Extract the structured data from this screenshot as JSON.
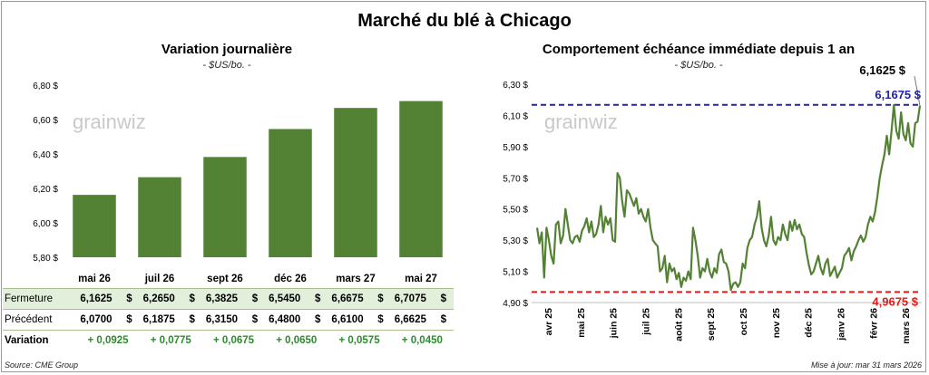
{
  "title": "Marché du blé à Chicago",
  "left_panel": {
    "title": "Variation journalière",
    "subtitle": "- $US/bo. -"
  },
  "right_panel": {
    "title": "Comportement échéance immédiate depuis 1 an",
    "subtitle": "- $US/bo. -"
  },
  "watermark": {
    "text": "grainwiz"
  },
  "table": {
    "rows": [
      {
        "label": "Fermeture",
        "values": [
          "6,1625",
          "6,2650",
          "6,3825",
          "6,5450",
          "6,6675",
          "6,7075"
        ],
        "unit": "$"
      },
      {
        "label": "Précédent",
        "values": [
          "6,0700",
          "6,1875",
          "6,3150",
          "6,4800",
          "6,6100",
          "6,6625"
        ],
        "unit": "$"
      },
      {
        "label": "Variation",
        "values": [
          "+ 0,0925",
          "+ 0,0775",
          "+ 0,0675",
          "+ 0,0650",
          "+ 0,0575",
          "+ 0,0450"
        ]
      }
    ]
  },
  "footer": {
    "source": "Source: CME Group",
    "updated": "Mise à jour: mar 31 mars 2026"
  },
  "chart_data": [
    {
      "type": "bar",
      "title": "Variation journalière",
      "subtitle": "- $US/bo. -",
      "categories": [
        "mai 26",
        "juil 26",
        "sept 26",
        "déc 26",
        "mars 27",
        "mai 27"
      ],
      "values": [
        6.1625,
        6.265,
        6.3825,
        6.545,
        6.6675,
        6.7075
      ],
      "ylim": [
        5.8,
        6.8
      ],
      "yticks": [
        "5,80 $",
        "6,00 $",
        "6,20 $",
        "6,40 $",
        "6,60 $",
        "6,80 $"
      ],
      "color": "#548235"
    },
    {
      "type": "line",
      "title": "Comportement échéance immédiate depuis 1 an",
      "subtitle": "- $US/bo. -",
      "ylim": [
        4.9,
        6.3
      ],
      "yticks": [
        "4,90 $",
        "5,10 $",
        "5,30 $",
        "5,50 $",
        "5,70 $",
        "5,90 $",
        "6,10 $",
        "6,30 $"
      ],
      "xticks": [
        "avr 25",
        "mai 25",
        "juin 25",
        "juil 25",
        "août 25",
        "sept 25",
        "oct 25",
        "nov 25",
        "déc 25",
        "janv 26",
        "févr 26",
        "mars 26"
      ],
      "series": [
        {
          "color": "#548235",
          "values": [
            5.38,
            5.28,
            5.35,
            5.06,
            5.38,
            5.3,
            5.2,
            5.15,
            5.4,
            5.42,
            5.28,
            5.33,
            5.5,
            5.4,
            5.3,
            5.28,
            5.32,
            5.33,
            5.29,
            5.36,
            5.39,
            5.44,
            5.35,
            5.42,
            5.32,
            5.34,
            5.4,
            5.52,
            5.35,
            5.45,
            5.4,
            5.44,
            5.3,
            5.29,
            5.73,
            5.7,
            5.55,
            5.45,
            5.62,
            5.6,
            5.56,
            5.52,
            5.57,
            5.47,
            5.5,
            5.45,
            5.42,
            5.5,
            5.38,
            5.3,
            5.28,
            5.26,
            5.1,
            5.12,
            5.2,
            5.03,
            5.15,
            5.1,
            5.12,
            5.05,
            5.09,
            5.0,
            5.06,
            5.04,
            5.1,
            5.05,
            5.38,
            5.3,
            5.2,
            5.06,
            5.12,
            5.1,
            5.18,
            5.1,
            5.06,
            5.12,
            5.09,
            5.21,
            5.24,
            5.16,
            5.15,
            5.1,
            4.98,
            5.02,
            5.03,
            5.0,
            5.03,
            5.15,
            5.12,
            5.25,
            5.3,
            5.32,
            5.4,
            5.45,
            5.55,
            5.38,
            5.3,
            5.26,
            5.33,
            5.45,
            5.3,
            5.27,
            5.32,
            5.3,
            5.4,
            5.34,
            5.3,
            5.42,
            5.36,
            5.43,
            5.37,
            5.4,
            5.34,
            5.32,
            5.22,
            5.14,
            5.08,
            5.1,
            5.15,
            5.2,
            5.12,
            5.08,
            5.15,
            5.18,
            5.07,
            5.1,
            5.13,
            5.06,
            5.09,
            5.12,
            5.2,
            5.22,
            5.25,
            5.17,
            5.23,
            5.26,
            5.3,
            5.33,
            5.29,
            5.32,
            5.4,
            5.45,
            5.42,
            5.48,
            5.58,
            5.7,
            5.78,
            5.85,
            5.97,
            5.85,
            6.0,
            6.1675,
            6.0,
            5.95,
            6.12,
            5.98,
            5.94,
            6.05,
            5.92,
            5.9,
            6.05,
            6.06,
            6.1625
          ]
        }
      ],
      "annotations": [
        {
          "label": "6,1625 $",
          "value": 6.1625,
          "color": "#000000"
        },
        {
          "label": "6,1675 $",
          "value": 6.1675,
          "color": "#2222aa"
        },
        {
          "label": "4,9675 $",
          "value": 4.9675,
          "color": "#e31b1b"
        }
      ]
    }
  ]
}
